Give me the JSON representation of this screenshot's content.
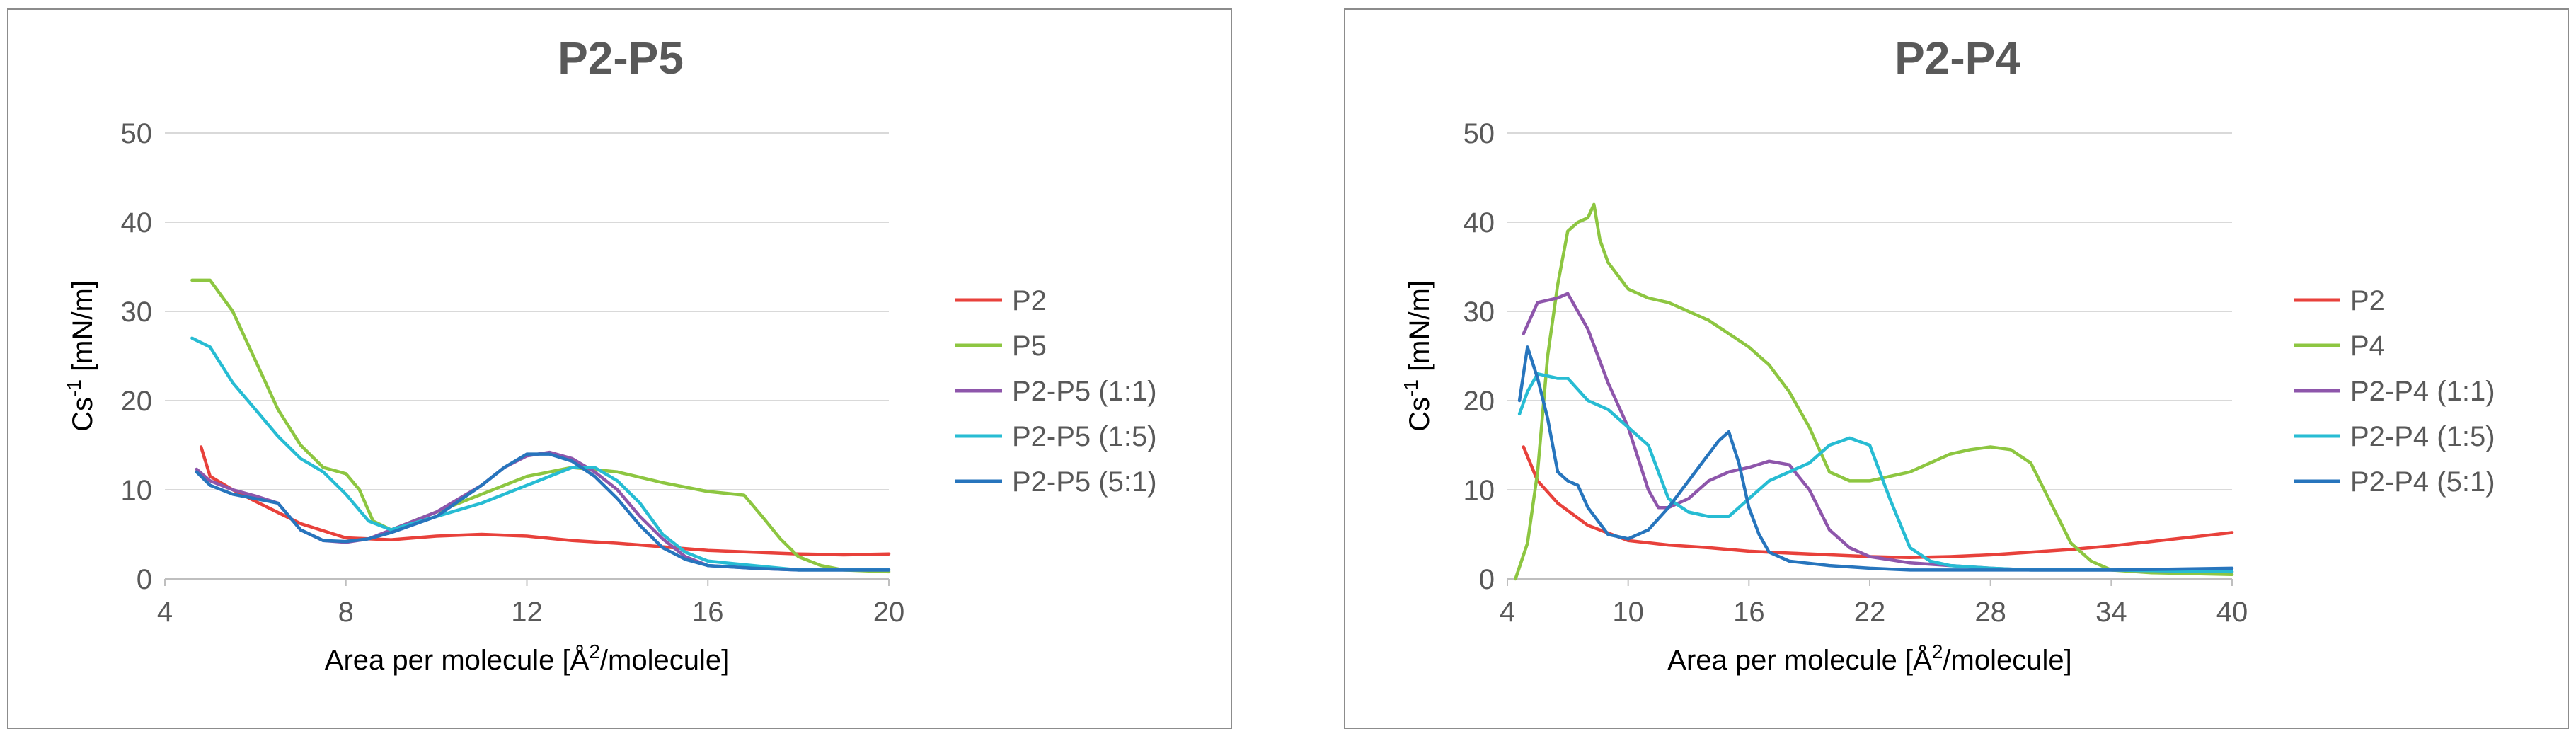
{
  "chart_data": [
    {
      "type": "line",
      "title": "P2-P5",
      "ylabel": "Cs-1 [mN/m]",
      "ylabel_main": "Cs",
      "ylabel_sup": "-1",
      "ylabel_rest": " [mN/m]",
      "xlabel": "Area per molecule [Å2/molecule]",
      "xlabel_main": "Area per molecule [Å",
      "xlabel_sup": "2",
      "xlabel_rest": "/molecule]",
      "xlim": [
        4,
        20
      ],
      "ylim": [
        0,
        50
      ],
      "xticks": [
        "4",
        "8",
        "12",
        "16",
        "20"
      ],
      "yticks": [
        "0",
        "10",
        "20",
        "30",
        "40",
        "50"
      ],
      "legend_position": "right",
      "series": [
        {
          "name": "P2",
          "color": "#e8413b",
          "points": [
            [
              4.8,
              14.8
            ],
            [
              5.0,
              11.5
            ],
            [
              5.5,
              10
            ],
            [
              6.0,
              8.7
            ],
            [
              7.0,
              6.2
            ],
            [
              8.0,
              4.6
            ],
            [
              9.0,
              4.4
            ],
            [
              10.0,
              4.8
            ],
            [
              11.0,
              5.0
            ],
            [
              12.0,
              4.8
            ],
            [
              13.0,
              4.3
            ],
            [
              14.0,
              4.0
            ],
            [
              15.0,
              3.6
            ],
            [
              16.0,
              3.2
            ],
            [
              17.0,
              3.0
            ],
            [
              18.0,
              2.8
            ],
            [
              19.0,
              2.7
            ],
            [
              20.0,
              2.8
            ]
          ]
        },
        {
          "name": "P5",
          "color": "#8dc641",
          "points": [
            [
              4.6,
              33.5
            ],
            [
              5.0,
              33.5
            ],
            [
              5.5,
              30
            ],
            [
              6.0,
              24.5
            ],
            [
              6.5,
              19
            ],
            [
              7.0,
              15
            ],
            [
              7.5,
              12.5
            ],
            [
              8.0,
              11.8
            ],
            [
              8.3,
              10
            ],
            [
              8.6,
              6.5
            ],
            [
              9.0,
              5.5
            ],
            [
              10.0,
              7.5
            ],
            [
              11.0,
              9.5
            ],
            [
              12.0,
              11.5
            ],
            [
              13.0,
              12.5
            ],
            [
              14.0,
              12
            ],
            [
              15.0,
              10.8
            ],
            [
              16.0,
              9.8
            ],
            [
              16.8,
              9.4
            ],
            [
              17.2,
              7.0
            ],
            [
              17.6,
              4.5
            ],
            [
              18.0,
              2.5
            ],
            [
              18.5,
              1.5
            ],
            [
              19.0,
              1.0
            ],
            [
              20.0,
              0.8
            ]
          ]
        },
        {
          "name": "P2-P5 (1:1)",
          "color": "#8e56ab",
          "points": [
            [
              4.7,
              12.3
            ],
            [
              5.0,
              11
            ],
            [
              5.5,
              10
            ],
            [
              6.0,
              9.3
            ],
            [
              6.5,
              8.5
            ],
            [
              7.0,
              5.5
            ],
            [
              7.5,
              4.3
            ],
            [
              8.0,
              4.1
            ],
            [
              8.5,
              4.5
            ],
            [
              9.0,
              5.5
            ],
            [
              10.0,
              7.5
            ],
            [
              11.0,
              10.5
            ],
            [
              11.5,
              12.5
            ],
            [
              12.0,
              13.8
            ],
            [
              12.5,
              14.2
            ],
            [
              13.0,
              13.5
            ],
            [
              13.5,
              12.0
            ],
            [
              14.0,
              10
            ],
            [
              14.5,
              7
            ],
            [
              15.0,
              4.5
            ],
            [
              15.5,
              2.5
            ],
            [
              16.0,
              1.5
            ],
            [
              17.0,
              1.2
            ],
            [
              18.0,
              1.0
            ],
            [
              19.0,
              1.0
            ],
            [
              20.0,
              1.0
            ]
          ]
        },
        {
          "name": "P2-P5 (1:5)",
          "color": "#27bcd3",
          "points": [
            [
              4.6,
              27
            ],
            [
              5.0,
              26
            ],
            [
              5.5,
              22
            ],
            [
              6.0,
              19
            ],
            [
              6.5,
              16
            ],
            [
              7.0,
              13.5
            ],
            [
              7.5,
              12
            ],
            [
              8.0,
              9.5
            ],
            [
              8.5,
              6.5
            ],
            [
              9.0,
              5.5
            ],
            [
              10.0,
              7
            ],
            [
              11.0,
              8.5
            ],
            [
              12.0,
              10.5
            ],
            [
              12.5,
              11.5
            ],
            [
              13.0,
              12.5
            ],
            [
              13.5,
              12.5
            ],
            [
              14.0,
              11
            ],
            [
              14.5,
              8.5
            ],
            [
              15.0,
              5
            ],
            [
              15.5,
              3
            ],
            [
              16.0,
              2
            ],
            [
              17.0,
              1.5
            ],
            [
              18.0,
              1
            ],
            [
              19.0,
              1
            ],
            [
              20.0,
              1
            ]
          ]
        },
        {
          "name": "P2-P5 (5:1)",
          "color": "#2775bd",
          "points": [
            [
              4.7,
              12
            ],
            [
              5.0,
              10.5
            ],
            [
              5.5,
              9.5
            ],
            [
              6.0,
              9
            ],
            [
              6.5,
              8.5
            ],
            [
              7.0,
              5.5
            ],
            [
              7.5,
              4.3
            ],
            [
              8.0,
              4.2
            ],
            [
              8.5,
              4.5
            ],
            [
              9.0,
              5.2
            ],
            [
              10.0,
              7
            ],
            [
              11.0,
              10.5
            ],
            [
              11.5,
              12.5
            ],
            [
              12.0,
              14
            ],
            [
              12.5,
              14
            ],
            [
              13.0,
              13.2
            ],
            [
              13.5,
              11.5
            ],
            [
              14.0,
              9
            ],
            [
              14.5,
              6
            ],
            [
              15.0,
              3.5
            ],
            [
              15.5,
              2.2
            ],
            [
              16.0,
              1.5
            ],
            [
              17.0,
              1.2
            ],
            [
              18.0,
              1
            ],
            [
              19.0,
              1
            ],
            [
              20.0,
              1
            ]
          ]
        }
      ]
    },
    {
      "type": "line",
      "title": "P2-P4",
      "ylabel": "Cs-1 [mN/m]",
      "ylabel_main": "Cs",
      "ylabel_sup": "-1",
      "ylabel_rest": " [mN/m]",
      "xlabel": "Area per molecule [Å2/molecule]",
      "xlabel_main": "Area per molecule [Å",
      "xlabel_sup": "2",
      "xlabel_rest": "/molecule]",
      "xlim": [
        4,
        40
      ],
      "ylim": [
        0,
        50
      ],
      "xticks": [
        "4",
        "10",
        "16",
        "22",
        "28",
        "34",
        "40"
      ],
      "yticks": [
        "0",
        "10",
        "20",
        "30",
        "40",
        "50"
      ],
      "legend_position": "right",
      "series": [
        {
          "name": "P2",
          "color": "#e8413b",
          "points": [
            [
              4.8,
              14.8
            ],
            [
              5.5,
              11
            ],
            [
              6.5,
              8.5
            ],
            [
              8.0,
              6
            ],
            [
              10.0,
              4.3
            ],
            [
              12.0,
              3.8
            ],
            [
              14.0,
              3.5
            ],
            [
              16.0,
              3.1
            ],
            [
              18.0,
              2.9
            ],
            [
              20.0,
              2.7
            ],
            [
              22.0,
              2.5
            ],
            [
              24.0,
              2.4
            ],
            [
              26.0,
              2.5
            ],
            [
              28.0,
              2.7
            ],
            [
              30.0,
              3
            ],
            [
              32.0,
              3.3
            ],
            [
              34.0,
              3.7
            ],
            [
              36.0,
              4.2
            ],
            [
              38.0,
              4.7
            ],
            [
              40.0,
              5.2
            ]
          ]
        },
        {
          "name": "P4",
          "color": "#8dc641",
          "points": [
            [
              4.4,
              0
            ],
            [
              5.0,
              4
            ],
            [
              5.5,
              12
            ],
            [
              6.0,
              25
            ],
            [
              6.5,
              33
            ],
            [
              7.0,
              39
            ],
            [
              7.5,
              40
            ],
            [
              8.0,
              40.5
            ],
            [
              8.3,
              42
            ],
            [
              8.6,
              38
            ],
            [
              9.0,
              35.5
            ],
            [
              10.0,
              32.5
            ],
            [
              11.0,
              31.5
            ],
            [
              12.0,
              31
            ],
            [
              13.0,
              30
            ],
            [
              14.0,
              29
            ],
            [
              15.0,
              27.5
            ],
            [
              16.0,
              26
            ],
            [
              17.0,
              24
            ],
            [
              18.0,
              21
            ],
            [
              19.0,
              17
            ],
            [
              20.0,
              12
            ],
            [
              21.0,
              11
            ],
            [
              22.0,
              11
            ],
            [
              23.0,
              11.5
            ],
            [
              24.0,
              12
            ],
            [
              25.0,
              13
            ],
            [
              26.0,
              14
            ],
            [
              27.0,
              14.5
            ],
            [
              28.0,
              14.8
            ],
            [
              29.0,
              14.5
            ],
            [
              30.0,
              13
            ],
            [
              31.0,
              8.5
            ],
            [
              32.0,
              4
            ],
            [
              33.0,
              2
            ],
            [
              34.0,
              1
            ],
            [
              36.0,
              0.7
            ],
            [
              40.0,
              0.5
            ]
          ]
        },
        {
          "name": "P2-P4 (1:1)",
          "color": "#8e56ab",
          "points": [
            [
              4.8,
              27.5
            ],
            [
              5.5,
              31
            ],
            [
              6.5,
              31.5
            ],
            [
              7.0,
              32
            ],
            [
              8.0,
              28
            ],
            [
              9.0,
              22
            ],
            [
              10.0,
              17
            ],
            [
              11.0,
              10
            ],
            [
              11.5,
              8
            ],
            [
              12.0,
              8
            ],
            [
              13.0,
              9
            ],
            [
              14.0,
              11
            ],
            [
              15.0,
              12
            ],
            [
              16.0,
              12.5
            ],
            [
              17.0,
              13.2
            ],
            [
              18.0,
              12.8
            ],
            [
              19.0,
              10
            ],
            [
              20.0,
              5.5
            ],
            [
              21.0,
              3.5
            ],
            [
              22.0,
              2.5
            ],
            [
              24.0,
              1.8
            ],
            [
              26.0,
              1.5
            ],
            [
              28.0,
              1.2
            ],
            [
              30.0,
              1
            ],
            [
              34.0,
              1
            ],
            [
              40.0,
              0.8
            ]
          ]
        },
        {
          "name": "P2-P4 (1:5)",
          "color": "#27bcd3",
          "points": [
            [
              4.6,
              18.5
            ],
            [
              5.0,
              21
            ],
            [
              5.5,
              23
            ],
            [
              6.5,
              22.5
            ],
            [
              7.0,
              22.5
            ],
            [
              8.0,
              20
            ],
            [
              9.0,
              19
            ],
            [
              10.0,
              17
            ],
            [
              11.0,
              15
            ],
            [
              12.0,
              9
            ],
            [
              13.0,
              7.5
            ],
            [
              14.0,
              7
            ],
            [
              15.0,
              7
            ],
            [
              16.0,
              9
            ],
            [
              17.0,
              11
            ],
            [
              18.0,
              12
            ],
            [
              19.0,
              13
            ],
            [
              20.0,
              15
            ],
            [
              21.0,
              15.8
            ],
            [
              22.0,
              15
            ],
            [
              23.0,
              9
            ],
            [
              24.0,
              3.5
            ],
            [
              25.0,
              2
            ],
            [
              26.0,
              1.5
            ],
            [
              28.0,
              1.2
            ],
            [
              30.0,
              1
            ],
            [
              34.0,
              1
            ],
            [
              40.0,
              0.8
            ]
          ]
        },
        {
          "name": "P2-P4 (5:1)",
          "color": "#2775bd",
          "points": [
            [
              4.6,
              20
            ],
            [
              5.0,
              26
            ],
            [
              5.5,
              22.5
            ],
            [
              6.0,
              18
            ],
            [
              6.5,
              12
            ],
            [
              7.0,
              11
            ],
            [
              7.5,
              10.5
            ],
            [
              8.0,
              8
            ],
            [
              9.0,
              5
            ],
            [
              10.0,
              4.5
            ],
            [
              11.0,
              5.5
            ],
            [
              12.0,
              8
            ],
            [
              13.0,
              11
            ],
            [
              14.0,
              14
            ],
            [
              14.5,
              15.5
            ],
            [
              15.0,
              16.5
            ],
            [
              15.5,
              13
            ],
            [
              16.0,
              8
            ],
            [
              16.5,
              5
            ],
            [
              17.0,
              3
            ],
            [
              18.0,
              2
            ],
            [
              20.0,
              1.5
            ],
            [
              22.0,
              1.2
            ],
            [
              24.0,
              1
            ],
            [
              28.0,
              1
            ],
            [
              34.0,
              1
            ],
            [
              40.0,
              1.2
            ]
          ]
        }
      ]
    }
  ]
}
